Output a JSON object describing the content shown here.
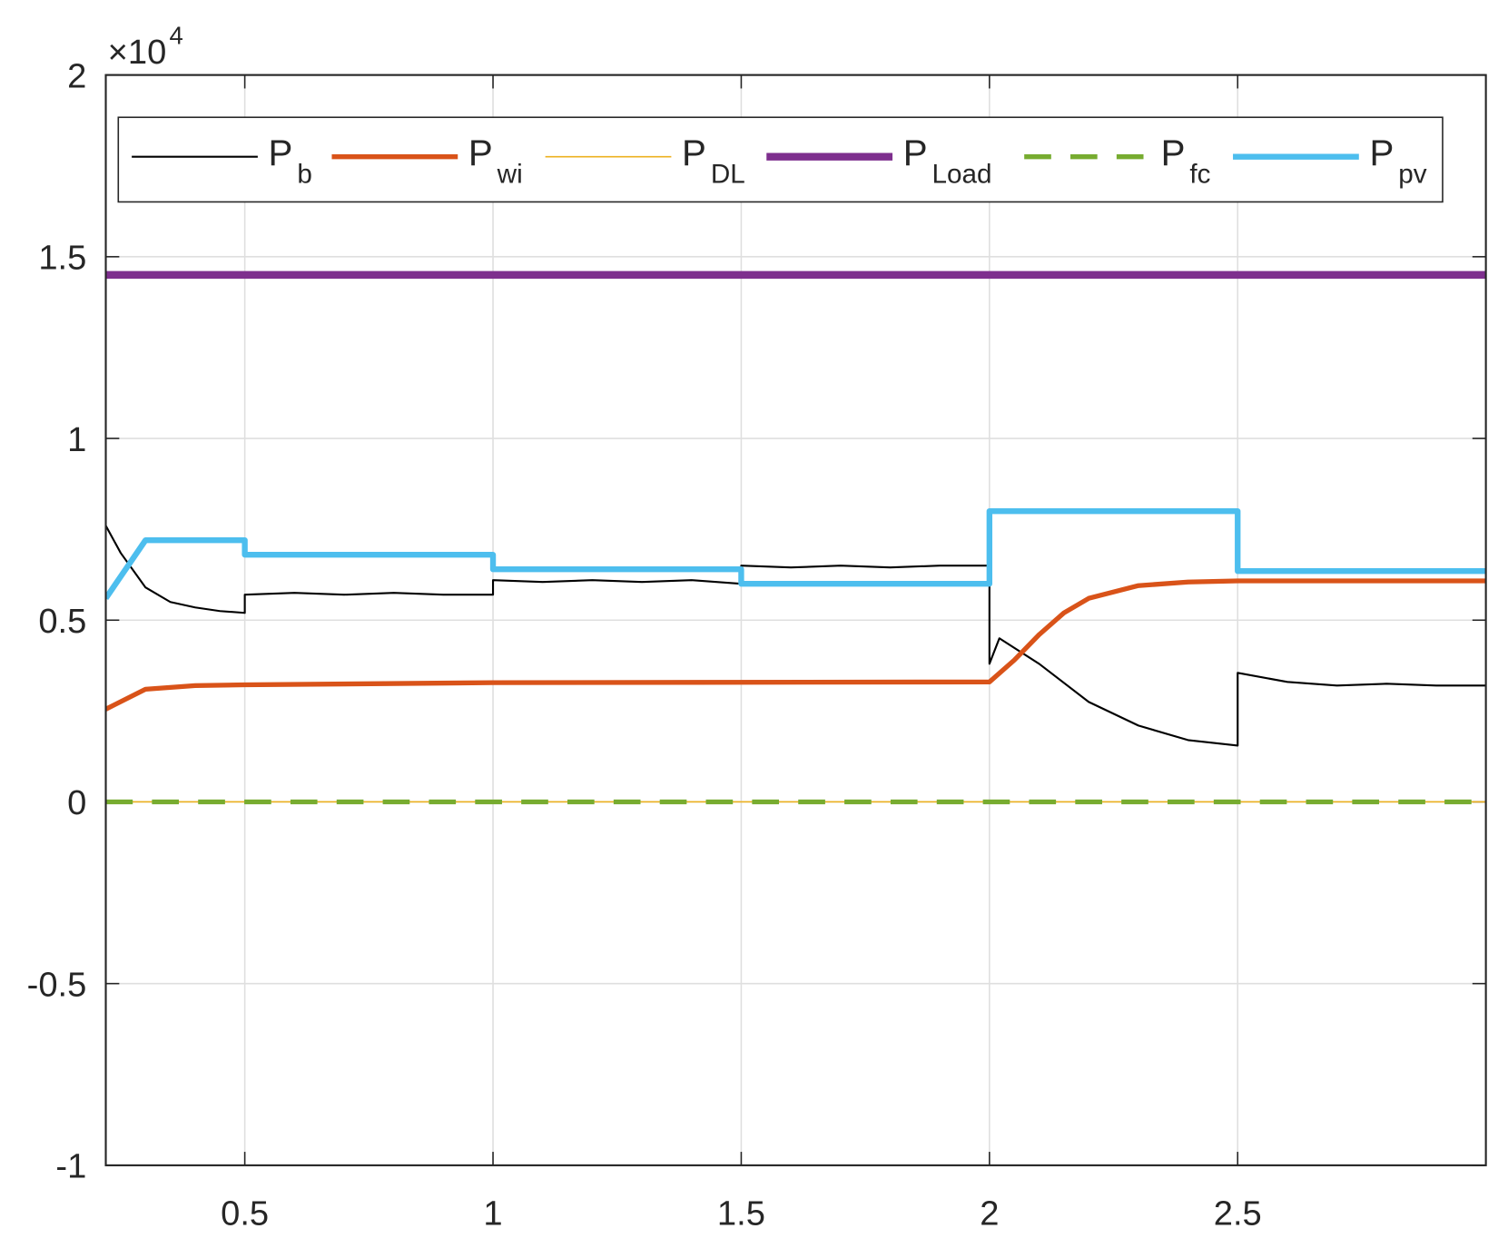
{
  "chart_data": {
    "type": "line",
    "y_multiplier": {
      "base": "×10",
      "exponent": "4"
    },
    "xlim": [
      0.22,
      3
    ],
    "xticks": [
      0.5,
      1,
      1.5,
      2,
      2.5
    ],
    "ylim": [
      -1,
      2
    ],
    "yticks": [
      -1,
      -0.5,
      0,
      0.5,
      1,
      1.5,
      2
    ],
    "grid": true,
    "legend": "top",
    "series": [
      {
        "name": "P",
        "subscript": "b",
        "color": "#000000",
        "style": "solid",
        "width": 2,
        "x": [
          0.22,
          0.25,
          0.3,
          0.35,
          0.4,
          0.45,
          0.5,
          0.5,
          0.6,
          0.7,
          0.8,
          0.9,
          1,
          1,
          1.1,
          1.2,
          1.3,
          1.4,
          1.5,
          1.5,
          1.6,
          1.7,
          1.8,
          1.9,
          2,
          2,
          2.02,
          2.1,
          2.2,
          2.3,
          2.4,
          2.5,
          2.5,
          2.6,
          2.7,
          2.8,
          2.9,
          3
        ],
        "values": [
          0.76,
          0.685,
          0.59,
          0.55,
          0.535,
          0.525,
          0.52,
          0.57,
          0.575,
          0.57,
          0.575,
          0.57,
          0.57,
          0.61,
          0.605,
          0.61,
          0.605,
          0.61,
          0.6,
          0.65,
          0.645,
          0.65,
          0.645,
          0.65,
          0.65,
          0.38,
          0.45,
          0.38,
          0.275,
          0.21,
          0.17,
          0.155,
          0.355,
          0.33,
          0.32,
          0.325,
          0.32,
          0.32
        ]
      },
      {
        "name": "P",
        "subscript": "wi",
        "color": "#D95319",
        "style": "solid",
        "width": 5,
        "x": [
          0.22,
          0.3,
          0.4,
          0.5,
          1,
          2,
          2.05,
          2.1,
          2.15,
          2.2,
          2.3,
          2.4,
          2.5,
          3
        ],
        "values": [
          0.255,
          0.31,
          0.32,
          0.322,
          0.328,
          0.33,
          0.39,
          0.46,
          0.52,
          0.56,
          0.595,
          0.605,
          0.608,
          0.608
        ]
      },
      {
        "name": "P",
        "subscript": "DL",
        "color": "#EDB120",
        "style": "solid",
        "width": 1.5,
        "x": [
          0.22,
          3
        ],
        "values": [
          0,
          0
        ]
      },
      {
        "name": "P",
        "subscript": "Load",
        "color": "#7E2F8E",
        "style": "solid",
        "width": 8,
        "x": [
          0.22,
          3
        ],
        "values": [
          1.45,
          1.45
        ]
      },
      {
        "name": "P",
        "subscript": "fc",
        "color": "#77AC30",
        "style": "dashed",
        "width": 5,
        "x": [
          0.22,
          3
        ],
        "values": [
          0,
          0
        ]
      },
      {
        "name": "P",
        "subscript": "pv",
        "color": "#4DBEEE",
        "style": "solid",
        "width": 6,
        "x": [
          0.22,
          0.3,
          0.5,
          0.5,
          1,
          1,
          1.5,
          1.5,
          2,
          2,
          2.5,
          2.5,
          3
        ],
        "values": [
          0.56,
          0.72,
          0.72,
          0.68,
          0.68,
          0.64,
          0.64,
          0.6,
          0.6,
          0.8,
          0.8,
          0.635,
          0.635
        ]
      }
    ]
  }
}
